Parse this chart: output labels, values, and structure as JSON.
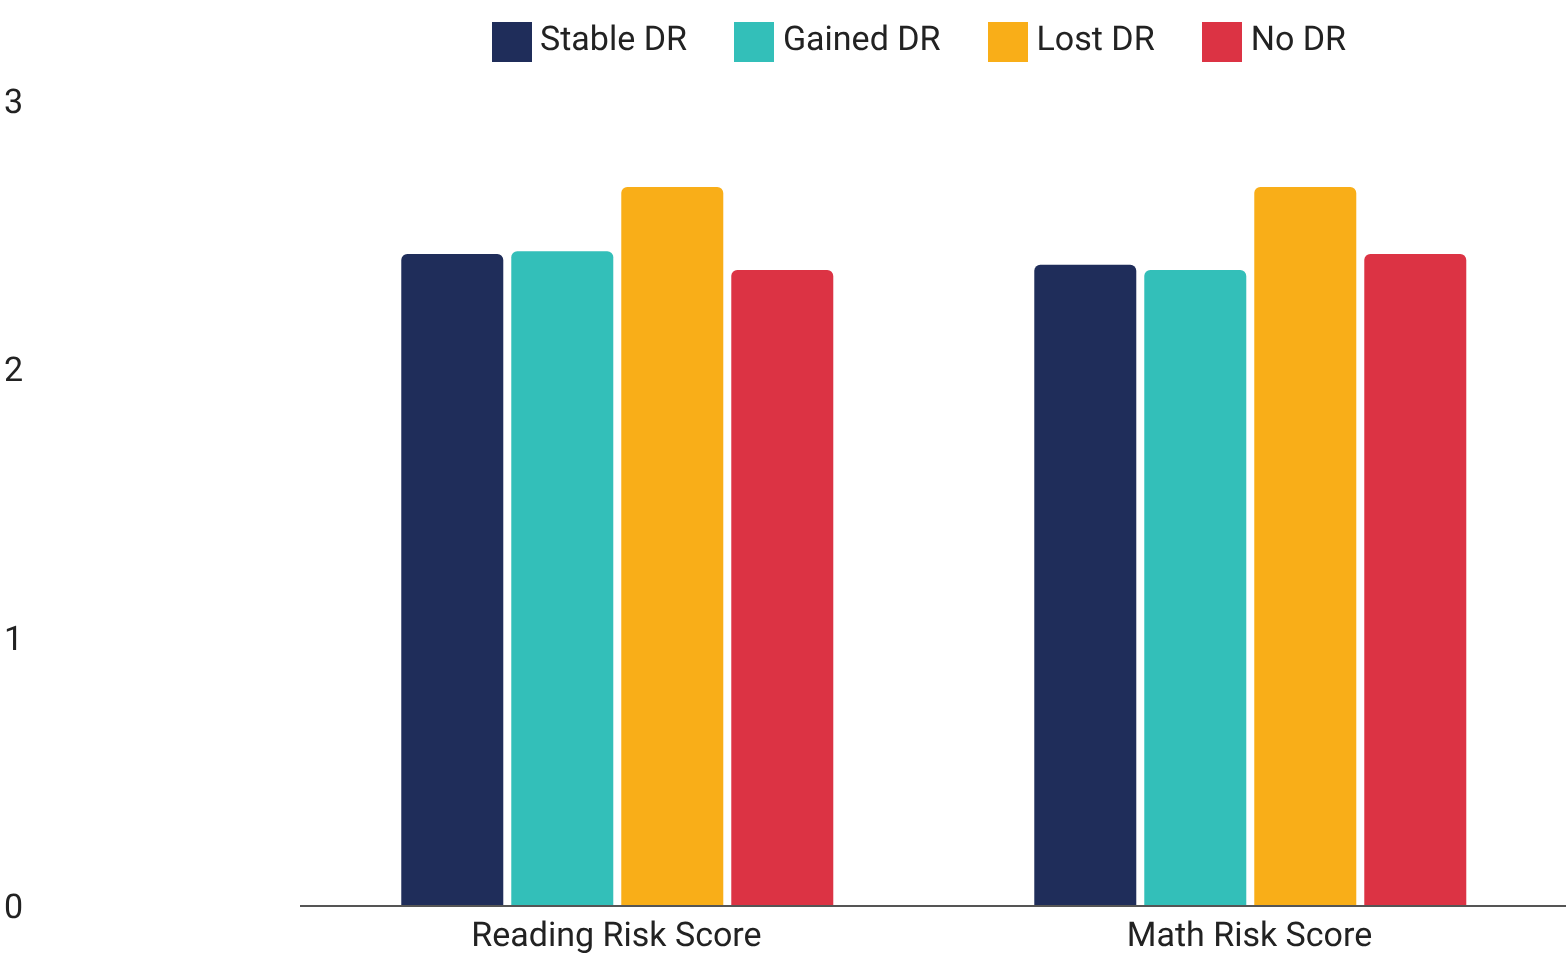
{
  "chart_data": {
    "type": "bar",
    "categories": [
      "Reading Risk Score",
      "Math Risk Score"
    ],
    "series": [
      {
        "name": "Stable DR",
        "color": "#1f2d5a",
        "values": [
          2.43,
          2.39
        ]
      },
      {
        "name": "Gained DR",
        "color": "#33bfb9",
        "values": [
          2.44,
          2.37
        ]
      },
      {
        "name": "Lost DR",
        "color": "#f9ae18",
        "values": [
          2.68,
          2.68
        ]
      },
      {
        "name": "No DR",
        "color": "#dc3344",
        "values": [
          2.37,
          2.43
        ]
      }
    ],
    "ylim": [
      0,
      3
    ],
    "yticks": [
      0,
      1,
      2,
      3
    ],
    "grid": false,
    "legend": "top"
  }
}
